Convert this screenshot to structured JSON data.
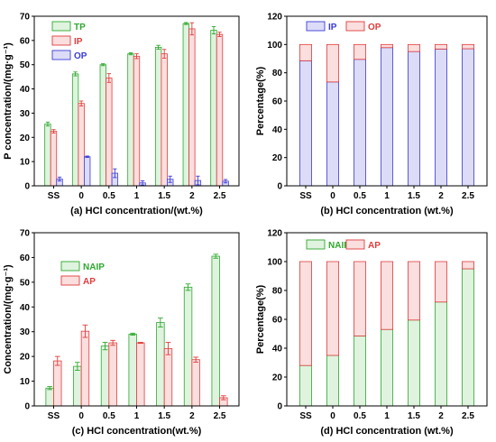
{
  "chart_data": [
    {
      "id": "a",
      "type": "bar",
      "xlabel": "(a) HCl concentration/(wt.%)",
      "ylabel": "P concentration/(mg·g⁻¹)",
      "ylim": [
        0,
        70
      ],
      "yticks": [
        0,
        10,
        20,
        30,
        40,
        50,
        60,
        70
      ],
      "categories": [
        "SS",
        "0",
        "0.5",
        "1",
        "1.5",
        "2",
        "2.5"
      ],
      "grid": false,
      "legend_position": "top-left",
      "series": [
        {
          "name": "TP",
          "values": [
            25.5,
            46.2,
            50.0,
            54.5,
            57.2,
            67.0,
            64.2
          ],
          "errors": [
            0.8,
            0.8,
            0.4,
            0.4,
            0.8,
            0.4,
            1.5
          ],
          "color": "#2ea82e",
          "fill": "#dff3df"
        },
        {
          "name": "IP",
          "values": [
            22.5,
            34.0,
            44.5,
            53.5,
            54.5,
            64.8,
            62.5
          ],
          "errors": [
            0.7,
            1.0,
            1.8,
            1.0,
            1.8,
            2.5,
            0.9
          ],
          "color": "#e03c3c",
          "fill": "#fbdede"
        },
        {
          "name": "OP",
          "values": [
            2.8,
            12.0,
            5.2,
            1.2,
            2.7,
            2.2,
            1.9
          ],
          "errors": [
            0.8,
            0.3,
            1.8,
            0.9,
            1.3,
            1.8,
            0.7
          ],
          "color": "#3b3bd8",
          "fill": "#dcdcf8"
        }
      ]
    },
    {
      "id": "b",
      "type": "bar",
      "stacked": true,
      "xlabel": "(b) HCl concentration (wt.%)",
      "ylabel": "Percentage(%)",
      "ylim": [
        0,
        120
      ],
      "yticks": [
        0,
        20,
        40,
        60,
        80,
        100,
        120
      ],
      "categories": [
        "SS",
        "0",
        "0.5",
        "1",
        "1.5",
        "2",
        "2.5"
      ],
      "grid": false,
      "legend_position": "top-left",
      "series": [
        {
          "name": "IP",
          "values": [
            88.5,
            73.5,
            89.5,
            97.8,
            95.0,
            96.8,
            97.0
          ],
          "color": "#3b3bd8",
          "fill": "#dcdcf8"
        },
        {
          "name": "OP",
          "values": [
            11.5,
            26.5,
            10.5,
            2.2,
            5.0,
            3.2,
            3.0
          ],
          "color": "#e03c3c",
          "fill": "#fbdede"
        }
      ]
    },
    {
      "id": "c",
      "type": "bar",
      "xlabel": "(c) HCl concentration(wt.%)",
      "ylabel": "Concentration/(mg·g⁻¹)",
      "ylim": [
        0,
        70
      ],
      "yticks": [
        0,
        10,
        20,
        30,
        40,
        50,
        60,
        70
      ],
      "categories": [
        "SS",
        "0",
        "0.5",
        "1",
        "1.5",
        "2",
        "2.5"
      ],
      "grid": false,
      "legend_position": "top-left",
      "series": [
        {
          "name": "NAIP",
          "values": [
            7.2,
            16.0,
            24.2,
            29.0,
            33.7,
            48.0,
            60.5
          ],
          "errors": [
            0.6,
            1.6,
            1.5,
            0.4,
            1.8,
            1.3,
            0.8
          ],
          "color": "#2ea82e",
          "fill": "#dff3df"
        },
        {
          "name": "AP",
          "values": [
            18.2,
            30.2,
            25.5,
            25.5,
            23.2,
            18.7,
            3.3
          ],
          "errors": [
            1.8,
            2.5,
            1.0,
            0.2,
            2.5,
            1.0,
            0.8
          ],
          "color": "#e03c3c",
          "fill": "#fbdede"
        }
      ]
    },
    {
      "id": "d",
      "type": "bar",
      "stacked": true,
      "xlabel": "(d) HCl concentration (wt.%)",
      "ylabel": "Percentage(%)",
      "ylim": [
        0,
        120
      ],
      "yticks": [
        0,
        20,
        40,
        60,
        80,
        100,
        120
      ],
      "categories": [
        "SS",
        "0",
        "0.5",
        "1",
        "1.5",
        "2",
        "2.5"
      ],
      "grid": false,
      "legend_position": "top-left",
      "series": [
        {
          "name": "NAIP",
          "values": [
            28.0,
            35.0,
            48.5,
            53.0,
            59.5,
            72.0,
            95.0
          ],
          "color": "#2ea82e",
          "fill": "#dff3df"
        },
        {
          "name": "AP",
          "values": [
            72.0,
            65.0,
            51.5,
            47.0,
            40.5,
            28.0,
            5.0
          ],
          "color": "#e03c3c",
          "fill": "#fbdede"
        }
      ]
    }
  ]
}
